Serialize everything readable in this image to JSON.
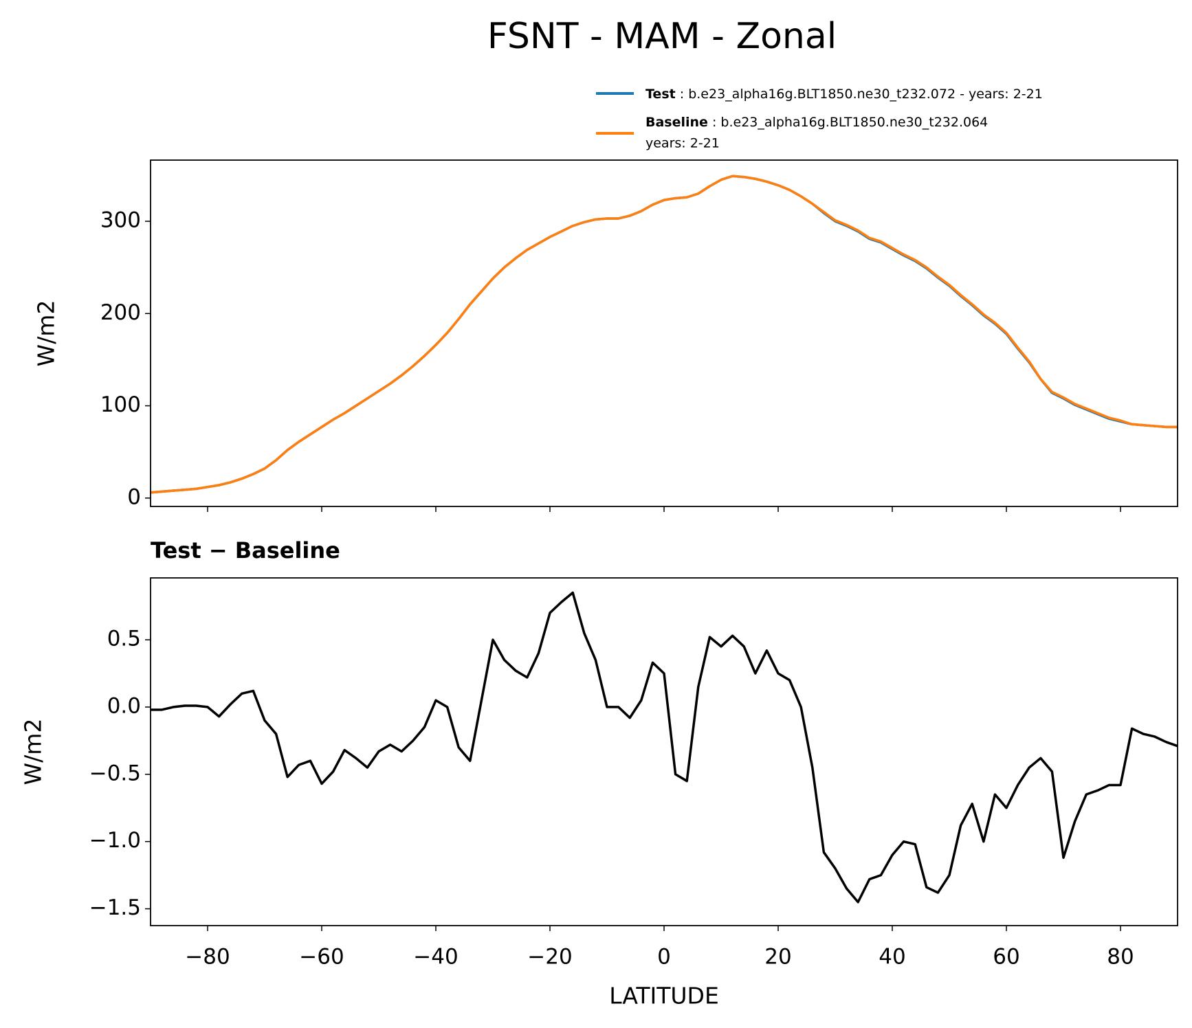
{
  "title": "FSNT - MAM - Zonal",
  "chart_data": [
    {
      "type": "line",
      "ylabel": "W/m2",
      "x": [
        -90,
        -88,
        -86,
        -84,
        -82,
        -80,
        -78,
        -76,
        -74,
        -72,
        -70,
        -68,
        -66,
        -64,
        -62,
        -60,
        -58,
        -56,
        -54,
        -52,
        -50,
        -48,
        -46,
        -44,
        -42,
        -40,
        -38,
        -36,
        -34,
        -32,
        -30,
        -28,
        -26,
        -24,
        -22,
        -20,
        -18,
        -16,
        -14,
        -12,
        -10,
        -8,
        -6,
        -4,
        -2,
        0,
        2,
        4,
        6,
        8,
        10,
        12,
        14,
        16,
        18,
        20,
        22,
        24,
        26,
        28,
        30,
        32,
        34,
        36,
        38,
        40,
        42,
        44,
        46,
        48,
        50,
        52,
        54,
        56,
        58,
        60,
        62,
        64,
        66,
        68,
        70,
        72,
        74,
        76,
        78,
        80,
        82,
        84,
        86,
        88,
        90
      ],
      "series": [
        {
          "name": "Test",
          "description": ": b.e23_alpha16g.BLT1850.ne30_t232.072 - years: 2-21",
          "color": "#1f77b4",
          "values": [
            6,
            7,
            8,
            9,
            10,
            12,
            14,
            17,
            21,
            26,
            32,
            41,
            52,
            61,
            69,
            77,
            85,
            92,
            100,
            108,
            116,
            124,
            133,
            143,
            154,
            166,
            179,
            194,
            210,
            224,
            238,
            250,
            260,
            269,
            276,
            283,
            289,
            295,
            299,
            302,
            303,
            303,
            306,
            311,
            318,
            323,
            325,
            326,
            330,
            338,
            345,
            349,
            348,
            346,
            343,
            339,
            334,
            327,
            319,
            309,
            300,
            295,
            289,
            281,
            277,
            270,
            263,
            257,
            249,
            239,
            230,
            219,
            209,
            198,
            189,
            178,
            162,
            147,
            129,
            114,
            108,
            101,
            96,
            91,
            86,
            83,
            80,
            79,
            78,
            77,
            77
          ]
        },
        {
          "name": "Baseline",
          "description": [
            ": b.e23_alpha16g.BLT1850.ne30_t232.064",
            "years: 2-21"
          ],
          "color": "#ff7f0e",
          "values": [
            6,
            7,
            8,
            9,
            10,
            12,
            14,
            17,
            21,
            26,
            32,
            41,
            52,
            61,
            69,
            77,
            85,
            92,
            100,
            108,
            116,
            124,
            133,
            143,
            154,
            166,
            179,
            194,
            210,
            224,
            238,
            250,
            260,
            269,
            276,
            283,
            289,
            295,
            299,
            302,
            303,
            303,
            306,
            311,
            318,
            323,
            325,
            326,
            330,
            338,
            345,
            349,
            348,
            346,
            343,
            339,
            334,
            327,
            319,
            310,
            301,
            296,
            290,
            282,
            278,
            271,
            264,
            258,
            250,
            240,
            231,
            220,
            210,
            199,
            190,
            179,
            163,
            148,
            129,
            115,
            109,
            102,
            97,
            92,
            87,
            84,
            80,
            79,
            78,
            77,
            77
          ]
        }
      ],
      "xlim": [
        -90,
        90
      ],
      "xticks": [
        -80,
        -60,
        -40,
        -20,
        0,
        20,
        40,
        60,
        80
      ],
      "ylim": [
        -9.1,
        366.3
      ],
      "yticks": [
        0,
        100,
        200,
        300
      ]
    },
    {
      "type": "line",
      "title": "Test − Baseline",
      "xlabel": "LATITUDE",
      "ylabel": "W/m2",
      "x": [
        -90,
        -88,
        -86,
        -84,
        -82,
        -80,
        -78,
        -76,
        -74,
        -72,
        -70,
        -68,
        -66,
        -64,
        -62,
        -60,
        -58,
        -56,
        -54,
        -52,
        -50,
        -48,
        -46,
        -44,
        -42,
        -40,
        -38,
        -36,
        -34,
        -32,
        -30,
        -28,
        -26,
        -24,
        -22,
        -20,
        -18,
        -16,
        -14,
        -12,
        -10,
        -8,
        -6,
        -4,
        -2,
        0,
        2,
        4,
        6,
        8,
        10,
        12,
        14,
        16,
        18,
        20,
        22,
        24,
        26,
        28,
        30,
        32,
        34,
        36,
        38,
        40,
        42,
        44,
        46,
        48,
        50,
        52,
        54,
        56,
        58,
        60,
        62,
        64,
        66,
        68,
        70,
        72,
        74,
        76,
        78,
        80,
        82,
        84,
        86,
        88,
        90
      ],
      "series": [
        {
          "color": "#000000",
          "values": [
            -0.02,
            -0.02,
            0.0,
            0.01,
            0.01,
            0.0,
            -0.07,
            0.02,
            0.1,
            0.12,
            -0.1,
            -0.2,
            -0.52,
            -0.43,
            -0.4,
            -0.57,
            -0.48,
            -0.32,
            -0.38,
            -0.45,
            -0.33,
            -0.28,
            -0.33,
            -0.25,
            -0.15,
            0.05,
            0.0,
            -0.3,
            -0.4,
            0.05,
            0.5,
            0.35,
            0.27,
            0.22,
            0.4,
            0.7,
            0.78,
            0.85,
            0.55,
            0.35,
            0.0,
            0.0,
            -0.08,
            0.05,
            0.33,
            0.25,
            -0.5,
            -0.55,
            0.15,
            0.52,
            0.45,
            0.53,
            0.45,
            0.25,
            0.42,
            0.25,
            0.2,
            0.0,
            -0.45,
            -1.08,
            -1.2,
            -1.35,
            -1.45,
            -1.28,
            -1.25,
            -1.1,
            -1.0,
            -1.02,
            -1.34,
            -1.38,
            -1.25,
            -0.88,
            -0.72,
            -1.0,
            -0.65,
            -0.75,
            -0.58,
            -0.45,
            -0.38,
            -0.48,
            -1.12,
            -0.85,
            -0.65,
            -0.62,
            -0.58,
            -0.58,
            -0.16,
            -0.2,
            -0.22,
            -0.26,
            -0.29
          ]
        }
      ],
      "xlim": [
        -90,
        90
      ],
      "xticks": [
        {
          "value": -80,
          "label": "−80"
        },
        {
          "value": -60,
          "label": "−60"
        },
        {
          "value": -40,
          "label": "−40"
        },
        {
          "value": -20,
          "label": "−20"
        },
        0,
        20,
        40,
        60,
        80
      ],
      "ylim": [
        -1.625,
        0.96
      ],
      "yticks": [
        {
          "value": -1.5,
          "label": "−1.5"
        },
        {
          "value": -1.0,
          "label": "−1.0"
        },
        {
          "value": -0.5,
          "label": "−0.5"
        },
        {
          "value": 0.0,
          "label": "0.0"
        },
        0.5
      ]
    }
  ]
}
